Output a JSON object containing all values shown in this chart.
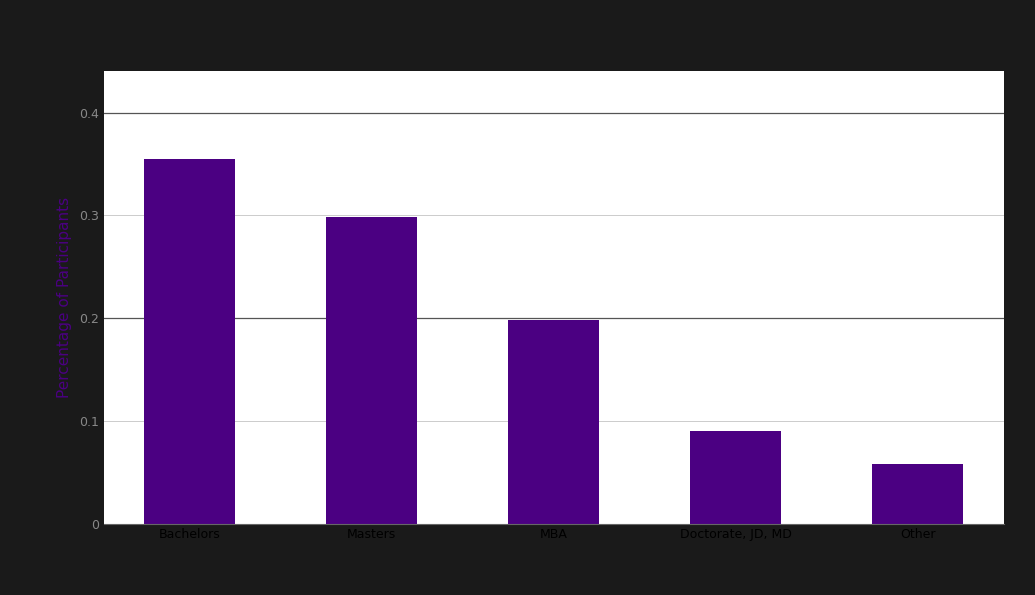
{
  "categories": [
    "Bachelors",
    "Masters",
    "MBA",
    "Doctorate, JD, MD",
    "Other"
  ],
  "values": [
    0.355,
    0.298,
    0.198,
    0.09,
    0.058
  ],
  "bar_color": "#4B0082",
  "ylabel": "Percentage of Participants",
  "ylim": [
    0,
    0.44
  ],
  "yticks": [
    0,
    0.1,
    0.2,
    0.3,
    0.4
  ],
  "background_color": "#1a1a1a",
  "plot_bg_color": "#ffffff",
  "grid_color": "#cccccc",
  "ylabel_color": "#4B0082",
  "tick_label_color": "#888888",
  "special_tick_color": "#000000",
  "xlabel_fontsize": 9,
  "ylabel_fontsize": 11
}
